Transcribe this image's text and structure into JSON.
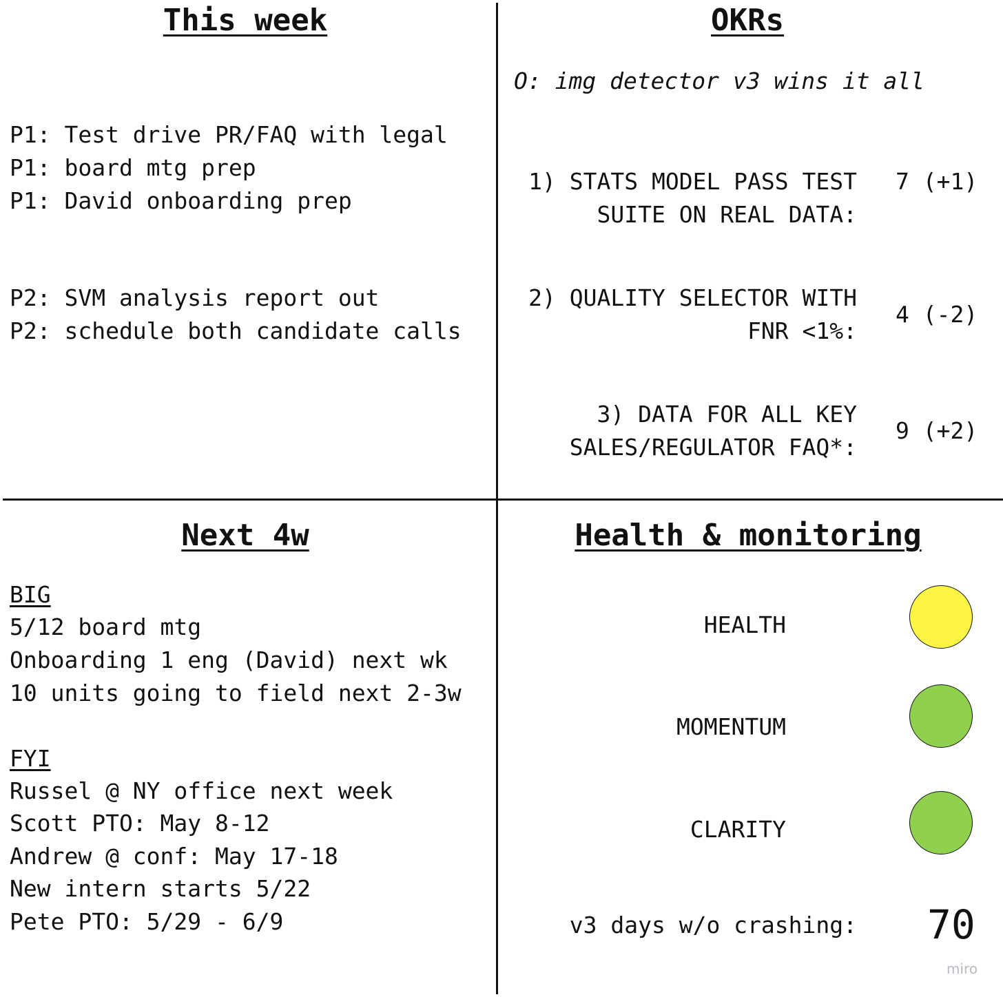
{
  "this_week": {
    "title": "This week",
    "p1": [
      "P1: Test drive PR/FAQ with legal",
      "P1: board mtg prep",
      "P1: David onboarding prep"
    ],
    "p2": [
      "P2: SVM analysis report out",
      "P2: schedule both candidate calls"
    ]
  },
  "okrs": {
    "title": "OKRs",
    "objective": "O: img detector v3 wins it all",
    "krs": [
      {
        "line1": "1) STATS MODEL PASS TEST",
        "line2": "SUITE ON REAL DATA:",
        "score": "7 (+1)"
      },
      {
        "line1": "2) QUALITY SELECTOR WITH",
        "line2": "FNR <1%:",
        "score": "4 (-2)"
      },
      {
        "line1": "3) DATA FOR ALL KEY",
        "line2": "SALES/REGULATOR FAQ*:",
        "score": "9 (+2)"
      }
    ]
  },
  "next_4w": {
    "title": "Next 4w",
    "big_heading": "BIG",
    "big_items": [
      "5/12 board mtg",
      "Onboarding 1 eng (David) next wk",
      "10 units going to field next 2-3w"
    ],
    "fyi_heading": "FYI",
    "fyi_items": [
      "Russel @ NY office next week",
      "Scott PTO: May 8-12",
      "Andrew @ conf: May 17-18",
      "New intern starts 5/22",
      "Pete PTO: 5/29 - 6/9"
    ]
  },
  "health": {
    "title": "Health & monitoring",
    "indicators": [
      {
        "label": "HEALTH",
        "color": "#fdf545"
      },
      {
        "label": "MOMENTUM",
        "color": "#8fd14f"
      },
      {
        "label": "CLARITY",
        "color": "#8fd14f"
      }
    ],
    "crash_label": "v3 days w/o crashing:",
    "crash_value": "70"
  },
  "watermark": "miro"
}
